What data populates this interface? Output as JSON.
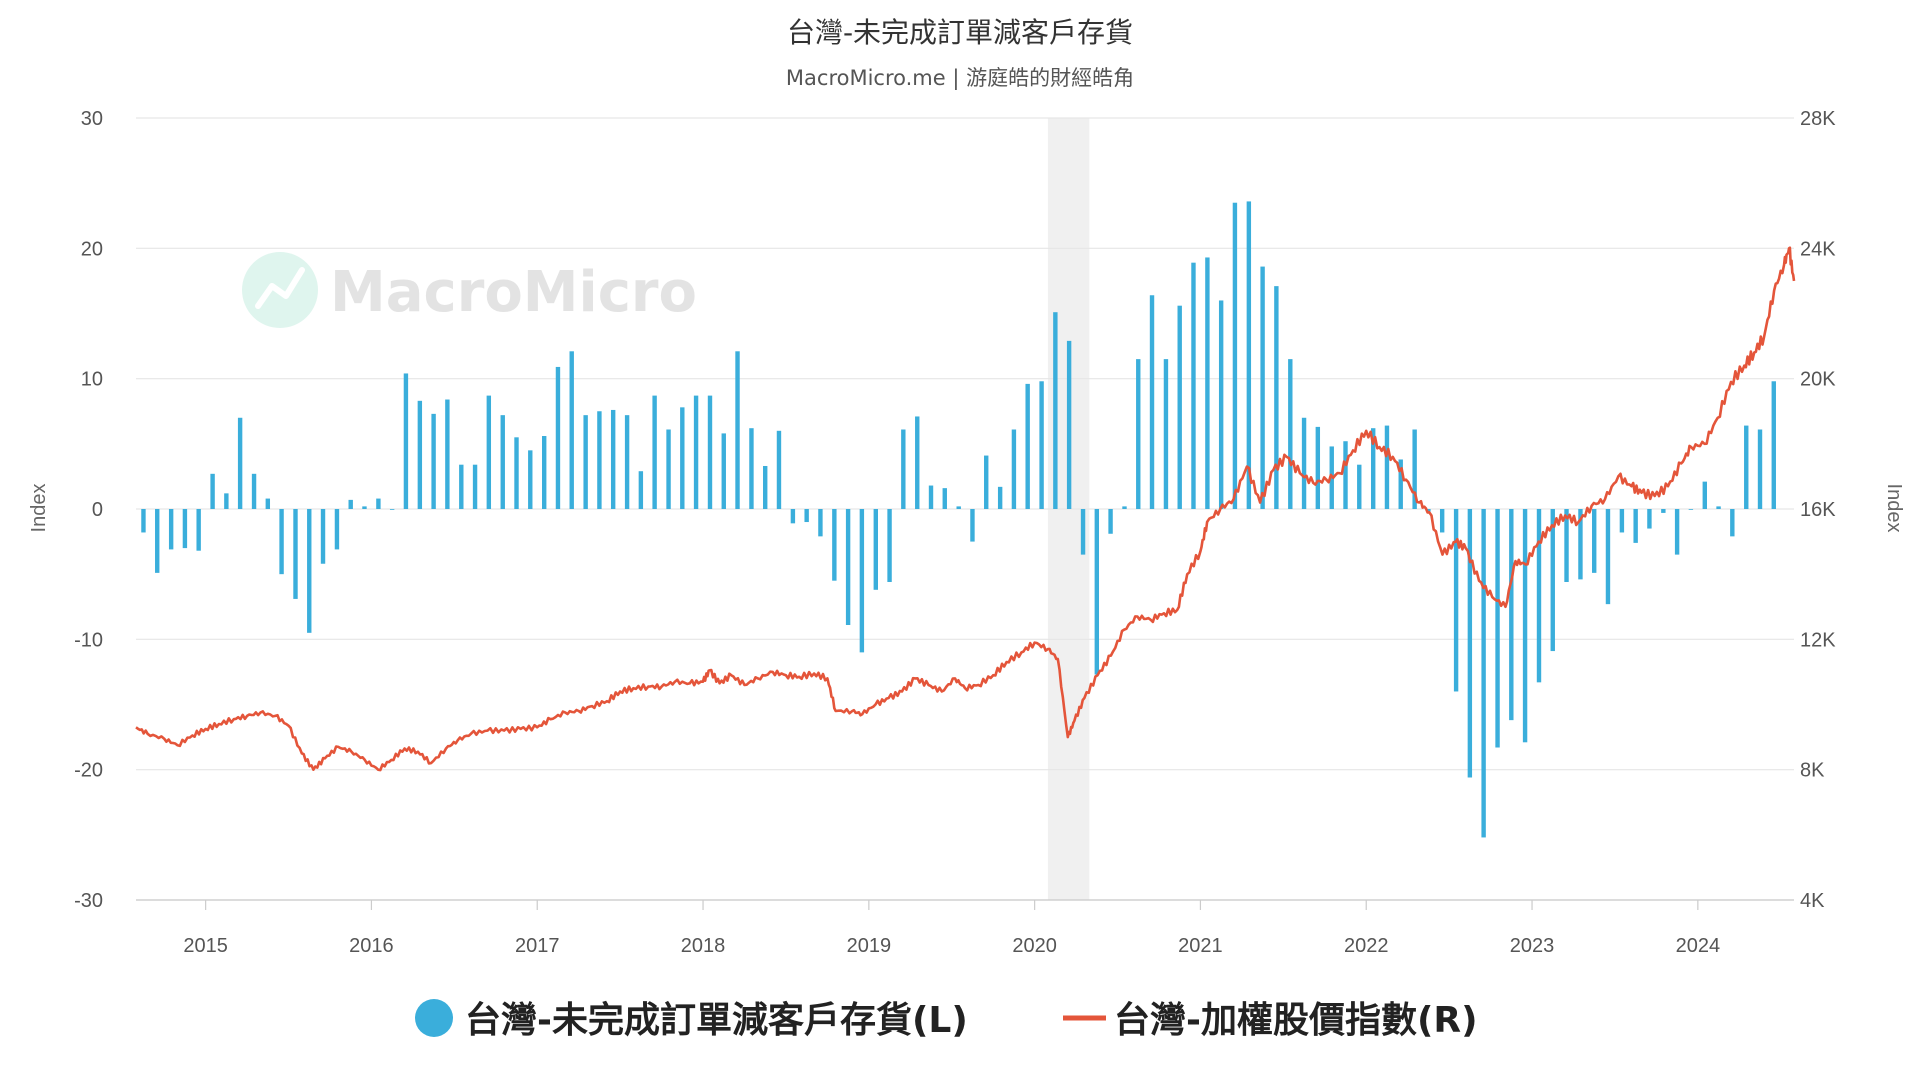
{
  "chart_data": {
    "type": "bar+line",
    "title": "台灣-未完成訂單減客戶存貨",
    "subtitle": "MacroMicro.me | 游庭皓的財經皓角",
    "watermark": "MacroMicro",
    "y_left": {
      "label": "Index",
      "range": [
        -30,
        30
      ],
      "ticks": [
        "30",
        "20",
        "10",
        "0",
        "-10",
        "-20",
        "-30"
      ],
      "tick_values": [
        30,
        20,
        10,
        0,
        -10,
        -20,
        -30
      ]
    },
    "y_right": {
      "label": "Index",
      "range": [
        4000,
        28000
      ],
      "ticks": [
        "28K",
        "24K",
        "20K",
        "16K",
        "12K",
        "8K",
        "4K"
      ],
      "tick_values": [
        28000,
        24000,
        20000,
        16000,
        12000,
        8000,
        4000
      ]
    },
    "x_axis": {
      "range": [
        2014.58,
        2024.58
      ],
      "ticks": [
        "2015",
        "2016",
        "2017",
        "2018",
        "2019",
        "2020",
        "2021",
        "2022",
        "2023",
        "2024"
      ],
      "tick_values": [
        2015,
        2016,
        2017,
        2018,
        2019,
        2020,
        2021,
        2022,
        2023,
        2024
      ]
    },
    "shaded_period": [
      2020.08,
      2020.33
    ],
    "colors": {
      "bars": "#3aaedb",
      "line": "#e4553a",
      "shade": "#f0f0f0",
      "grid": "#e6e6e6"
    },
    "legend": {
      "placement": "bottom-center",
      "bars_label": "台灣-未完成訂單減客戶存貨(L)",
      "line_label": "台灣-加權股價指數(R)"
    },
    "series_bars": {
      "name": "台灣-未完成訂單減客戶存貨(L)",
      "x": [
        2014.625,
        2014.708,
        2014.792,
        2014.875,
        2014.958,
        2015.042,
        2015.125,
        2015.208,
        2015.292,
        2015.375,
        2015.458,
        2015.542,
        2015.625,
        2015.708,
        2015.792,
        2015.875,
        2015.958,
        2016.042,
        2016.125,
        2016.208,
        2016.292,
        2016.375,
        2016.458,
        2016.542,
        2016.625,
        2016.708,
        2016.792,
        2016.875,
        2016.958,
        2017.042,
        2017.125,
        2017.208,
        2017.292,
        2017.375,
        2017.458,
        2017.542,
        2017.625,
        2017.708,
        2017.792,
        2017.875,
        2017.958,
        2018.042,
        2018.125,
        2018.208,
        2018.292,
        2018.375,
        2018.458,
        2018.542,
        2018.625,
        2018.708,
        2018.792,
        2018.875,
        2018.958,
        2019.042,
        2019.125,
        2019.208,
        2019.292,
        2019.375,
        2019.458,
        2019.542,
        2019.625,
        2019.708,
        2019.792,
        2019.875,
        2019.958,
        2020.042,
        2020.125,
        2020.208,
        2020.292,
        2020.375,
        2020.458,
        2020.542,
        2020.625,
        2020.708,
        2020.792,
        2020.875,
        2020.958,
        2021.042,
        2021.125,
        2021.208,
        2021.292,
        2021.375,
        2021.458,
        2021.542,
        2021.625,
        2021.708,
        2021.792,
        2021.875,
        2021.958,
        2022.042,
        2022.125,
        2022.208,
        2022.292,
        2022.375,
        2022.458,
        2022.542,
        2022.625,
        2022.708,
        2022.792,
        2022.875,
        2022.958,
        2023.042,
        2023.125,
        2023.208,
        2023.292,
        2023.375,
        2023.458,
        2023.542,
        2023.625,
        2023.708,
        2023.792,
        2023.875,
        2023.958,
        2024.042,
        2024.125,
        2024.208,
        2024.292,
        2024.375,
        2024.458
      ],
      "values": [
        -1.8,
        -4.9,
        -3.1,
        -3.0,
        -3.2,
        2.7,
        1.2,
        7.0,
        2.7,
        0.8,
        -5.0,
        -6.9,
        -9.5,
        -4.2,
        -3.1,
        0.7,
        0.2,
        0.8,
        0.0,
        10.4,
        8.3,
        7.3,
        8.4,
        3.4,
        3.4,
        8.7,
        7.2,
        5.5,
        4.5,
        5.6,
        10.9,
        12.1,
        7.2,
        7.5,
        7.6,
        7.2,
        2.9,
        8.7,
        6.1,
        7.8,
        8.7,
        8.7,
        5.8,
        12.1,
        6.2,
        3.3,
        6.0,
        -1.1,
        -1.0,
        -2.1,
        -5.5,
        -8.9,
        -11.0,
        -6.2,
        -5.6,
        6.1,
        7.1,
        1.8,
        1.6,
        0.2,
        -2.5,
        4.1,
        1.7,
        6.1,
        9.6,
        9.8,
        15.1,
        12.9,
        -3.5,
        -12.7,
        -1.9,
        0.2,
        11.5,
        16.4,
        11.5,
        15.6,
        18.9,
        19.3,
        16.0,
        23.5,
        23.6,
        18.6,
        17.1,
        11.5,
        7.0,
        6.3,
        4.8,
        5.2,
        3.4,
        6.2,
        6.4,
        3.8,
        6.1,
        -0.2,
        -1.8,
        -14.0,
        -20.6,
        -25.2,
        -18.3,
        -16.2,
        -17.9,
        -13.3,
        -10.9,
        -5.6,
        -5.4,
        -4.9,
        -7.3,
        -1.8,
        -2.6,
        -1.5,
        -0.3,
        -3.5,
        0.0,
        2.1,
        0.2,
        -2.1,
        6.4,
        6.1,
        9.8
      ]
    },
    "series_line": {
      "name": "台灣-加權股價指數(R)",
      "points": [
        [
          2014.58,
          9300
        ],
        [
          2014.65,
          9100
        ],
        [
          2014.75,
          8950
        ],
        [
          2014.83,
          8750
        ],
        [
          2014.92,
          9050
        ],
        [
          2015.0,
          9250
        ],
        [
          2015.08,
          9400
        ],
        [
          2015.17,
          9550
        ],
        [
          2015.25,
          9650
        ],
        [
          2015.33,
          9750
        ],
        [
          2015.42,
          9650
        ],
        [
          2015.5,
          9350
        ],
        [
          2015.58,
          8500
        ],
        [
          2015.65,
          8000
        ],
        [
          2015.72,
          8350
        ],
        [
          2015.8,
          8700
        ],
        [
          2015.88,
          8550
        ],
        [
          2015.96,
          8300
        ],
        [
          2016.04,
          8000
        ],
        [
          2016.12,
          8300
        ],
        [
          2016.2,
          8650
        ],
        [
          2016.28,
          8550
        ],
        [
          2016.36,
          8200
        ],
        [
          2016.45,
          8650
        ],
        [
          2016.52,
          8900
        ],
        [
          2016.6,
          9100
        ],
        [
          2016.7,
          9200
        ],
        [
          2016.8,
          9200
        ],
        [
          2016.9,
          9250
        ],
        [
          2017.0,
          9300
        ],
        [
          2017.08,
          9550
        ],
        [
          2017.17,
          9750
        ],
        [
          2017.25,
          9800
        ],
        [
          2017.33,
          9950
        ],
        [
          2017.42,
          10100
        ],
        [
          2017.5,
          10400
        ],
        [
          2017.58,
          10500
        ],
        [
          2017.67,
          10550
        ],
        [
          2017.75,
          10550
        ],
        [
          2017.83,
          10700
        ],
        [
          2017.92,
          10650
        ],
        [
          2018.0,
          10700
        ],
        [
          2018.04,
          11050
        ],
        [
          2018.1,
          10650
        ],
        [
          2018.17,
          10900
        ],
        [
          2018.25,
          10600
        ],
        [
          2018.33,
          10800
        ],
        [
          2018.42,
          11000
        ],
        [
          2018.5,
          10900
        ],
        [
          2018.58,
          10850
        ],
        [
          2018.67,
          10950
        ],
        [
          2018.75,
          10800
        ],
        [
          2018.8,
          9800
        ],
        [
          2018.9,
          9800
        ],
        [
          2018.96,
          9700
        ],
        [
          2019.04,
          10000
        ],
        [
          2019.12,
          10200
        ],
        [
          2019.2,
          10400
        ],
        [
          2019.28,
          10800
        ],
        [
          2019.36,
          10600
        ],
        [
          2019.44,
          10400
        ],
        [
          2019.52,
          10800
        ],
        [
          2019.58,
          10500
        ],
        [
          2019.66,
          10600
        ],
        [
          2019.75,
          10900
        ],
        [
          2019.83,
          11300
        ],
        [
          2019.92,
          11600
        ],
        [
          2020.0,
          11900
        ],
        [
          2020.08,
          11700
        ],
        [
          2020.14,
          11400
        ],
        [
          2020.2,
          9000
        ],
        [
          2020.24,
          9500
        ],
        [
          2020.3,
          10200
        ],
        [
          2020.38,
          10900
        ],
        [
          2020.46,
          11500
        ],
        [
          2020.54,
          12300
        ],
        [
          2020.62,
          12700
        ],
        [
          2020.7,
          12600
        ],
        [
          2020.78,
          12800
        ],
        [
          2020.86,
          12900
        ],
        [
          2020.92,
          14000
        ],
        [
          2021.0,
          14700
        ],
        [
          2021.04,
          15600
        ],
        [
          2021.12,
          16000
        ],
        [
          2021.2,
          16300
        ],
        [
          2021.28,
          17300
        ],
        [
          2021.36,
          16200
        ],
        [
          2021.44,
          17200
        ],
        [
          2021.52,
          17600
        ],
        [
          2021.6,
          17100
        ],
        [
          2021.68,
          16800
        ],
        [
          2021.76,
          16900
        ],
        [
          2021.84,
          17100
        ],
        [
          2021.92,
          17800
        ],
        [
          2022.0,
          18400
        ],
        [
          2022.08,
          17900
        ],
        [
          2022.16,
          17600
        ],
        [
          2022.24,
          16900
        ],
        [
          2022.32,
          16200
        ],
        [
          2022.38,
          15900
        ],
        [
          2022.46,
          14600
        ],
        [
          2022.54,
          15000
        ],
        [
          2022.6,
          14800
        ],
        [
          2022.68,
          13800
        ],
        [
          2022.76,
          13300
        ],
        [
          2022.84,
          13000
        ],
        [
          2022.9,
          14400
        ],
        [
          2022.96,
          14300
        ],
        [
          2023.04,
          15000
        ],
        [
          2023.12,
          15500
        ],
        [
          2023.2,
          15800
        ],
        [
          2023.28,
          15600
        ],
        [
          2023.36,
          16100
        ],
        [
          2023.44,
          16300
        ],
        [
          2023.52,
          17000
        ],
        [
          2023.6,
          16700
        ],
        [
          2023.66,
          16500
        ],
        [
          2023.74,
          16400
        ],
        [
          2023.82,
          16700
        ],
        [
          2023.9,
          17400
        ],
        [
          2023.96,
          17900
        ],
        [
          2024.04,
          18000
        ],
        [
          2024.12,
          18800
        ],
        [
          2024.2,
          19900
        ],
        [
          2024.28,
          20400
        ],
        [
          2024.34,
          20800
        ],
        [
          2024.4,
          21300
        ],
        [
          2024.46,
          22700
        ],
        [
          2024.52,
          23500
        ],
        [
          2024.55,
          24000
        ],
        [
          2024.58,
          23000
        ]
      ]
    }
  }
}
